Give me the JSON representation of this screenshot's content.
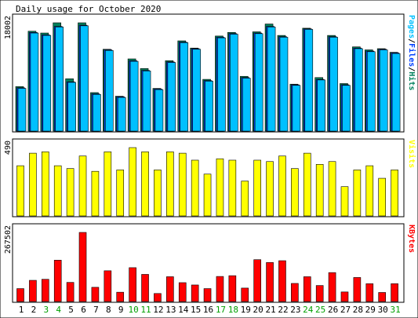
{
  "title": "Daily usage for October 2020",
  "colors": {
    "hits": "#00805c",
    "files": "#0040ff",
    "pages": "#00c0ff",
    "visits": "#ffff00",
    "kbytes": "#ff0000",
    "weekday_label": "#000000",
    "weekend_label": "#00a000",
    "frame": "#000000",
    "panel_bg": "#ffffff",
    "page_bg": "#ffffff"
  },
  "chart_data": [
    {
      "type": "bar",
      "name": "hits-files-pages",
      "ymax_label": "18002",
      "ylim": [
        0,
        18002
      ],
      "legend_parts": [
        {
          "text": "Pages",
          "color": "#00c0ff"
        },
        {
          "text": "/",
          "color": "#000000"
        },
        {
          "text": "Files",
          "color": "#0040ff"
        },
        {
          "text": "/",
          "color": "#000000"
        },
        {
          "text": "Hits",
          "color": "#00805c"
        }
      ],
      "categories": [
        "1",
        "2",
        "3",
        "4",
        "5",
        "6",
        "7",
        "8",
        "9",
        "10",
        "11",
        "12",
        "13",
        "14",
        "15",
        "16",
        "17",
        "18",
        "19",
        "20",
        "21",
        "22",
        "23",
        "24",
        "25",
        "26",
        "27",
        "28",
        "29",
        "30",
        "31"
      ],
      "series": [
        {
          "name": "Hits",
          "values": [
            7400,
            16600,
            16300,
            18000,
            8700,
            18000,
            6400,
            13600,
            5800,
            12000,
            10400,
            7100,
            11700,
            15000,
            13800,
            8600,
            15800,
            16400,
            9100,
            16500,
            17800,
            15900,
            7800,
            17100,
            8900,
            15900,
            7900,
            14000,
            13500,
            13700,
            13100
          ]
        },
        {
          "name": "Files",
          "values": [
            7200,
            16400,
            16000,
            17400,
            8200,
            17600,
            6200,
            13500,
            5700,
            11700,
            10100,
            7000,
            11500,
            14800,
            13700,
            8400,
            15600,
            16200,
            8900,
            16300,
            17400,
            15700,
            7700,
            17000,
            8600,
            15700,
            7700,
            13800,
            13300,
            13600,
            13000
          ]
        },
        {
          "name": "Pages",
          "values": [
            7100,
            16300,
            15900,
            17300,
            8100,
            17500,
            6100,
            13400,
            5600,
            11600,
            10000,
            6900,
            11400,
            14700,
            13600,
            8300,
            15500,
            16100,
            8800,
            16200,
            17300,
            15600,
            7600,
            16900,
            8500,
            15600,
            7600,
            13700,
            13200,
            13500,
            12900
          ]
        }
      ]
    },
    {
      "type": "bar",
      "name": "visits",
      "ymax_label": "490",
      "ylim": [
        0,
        490
      ],
      "legend_parts": [
        {
          "text": "Visits",
          "color": "#ffff00"
        }
      ],
      "categories": [
        "1",
        "2",
        "3",
        "4",
        "5",
        "6",
        "7",
        "8",
        "9",
        "10",
        "11",
        "12",
        "13",
        "14",
        "15",
        "16",
        "17",
        "18",
        "19",
        "20",
        "21",
        "22",
        "23",
        "24",
        "25",
        "26",
        "27",
        "28",
        "29",
        "30",
        "31"
      ],
      "series": [
        {
          "name": "Visits",
          "values": [
            360,
            450,
            460,
            360,
            340,
            430,
            320,
            460,
            330,
            490,
            460,
            330,
            460,
            450,
            400,
            300,
            410,
            400,
            250,
            400,
            390,
            430,
            340,
            450,
            370,
            390,
            210,
            330,
            360,
            270,
            330
          ]
        }
      ]
    },
    {
      "type": "bar",
      "name": "kbytes",
      "ymax_label": "267502",
      "ylim": [
        0,
        267502
      ],
      "legend_parts": [
        {
          "text": "KBytes",
          "color": "#ff0000"
        }
      ],
      "categories": [
        "1",
        "2",
        "3",
        "4",
        "5",
        "6",
        "7",
        "8",
        "9",
        "10",
        "11",
        "12",
        "13",
        "14",
        "15",
        "16",
        "17",
        "18",
        "19",
        "20",
        "21",
        "22",
        "23",
        "24",
        "25",
        "26",
        "27",
        "28",
        "29",
        "30",
        "31"
      ],
      "series": [
        {
          "name": "KBytes",
          "values": [
            50000,
            82000,
            86000,
            160000,
            74000,
            267500,
            55000,
            119000,
            36000,
            131000,
            105000,
            31000,
            96000,
            73000,
            64000,
            50000,
            97000,
            100000,
            52000,
            162000,
            151000,
            158000,
            70000,
            96000,
            62000,
            112000,
            37000,
            93000,
            69000,
            35000,
            69000
          ]
        }
      ]
    }
  ],
  "days": [
    "1",
    "2",
    "3",
    "4",
    "5",
    "6",
    "7",
    "8",
    "9",
    "10",
    "11",
    "12",
    "13",
    "14",
    "15",
    "16",
    "17",
    "18",
    "19",
    "20",
    "21",
    "22",
    "23",
    "24",
    "25",
    "26",
    "27",
    "28",
    "29",
    "30",
    "31"
  ],
  "weekend_days": [
    3,
    4,
    10,
    11,
    17,
    18,
    24,
    25,
    31
  ]
}
